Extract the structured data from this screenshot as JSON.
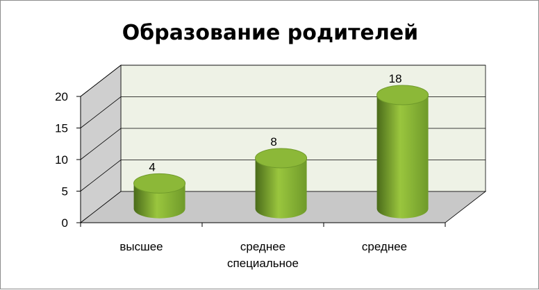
{
  "chart_data": {
    "type": "bar",
    "style": "3d-cylinder",
    "title": "Образование родителей",
    "categories": [
      [
        "высшее"
      ],
      [
        "среднее",
        "специальное"
      ],
      [
        "среднее"
      ]
    ],
    "values": [
      4,
      8,
      18
    ],
    "data_labels": [
      "4",
      "8",
      "18"
    ],
    "yticks": [
      "0",
      "5",
      "10",
      "15",
      "20"
    ],
    "ylim": [
      0,
      20
    ],
    "grid": true,
    "legend": "none",
    "colors": {
      "bar_light": "#9ac63e",
      "bar_mid": "#6f9a2a",
      "bar_dark": "#4a6b1a",
      "bar_top": "#8cb838",
      "wall": "#eef2e6",
      "side_wall": "#cfcfcf",
      "floor": "#c8c8c8",
      "gridline": "#000000"
    }
  }
}
